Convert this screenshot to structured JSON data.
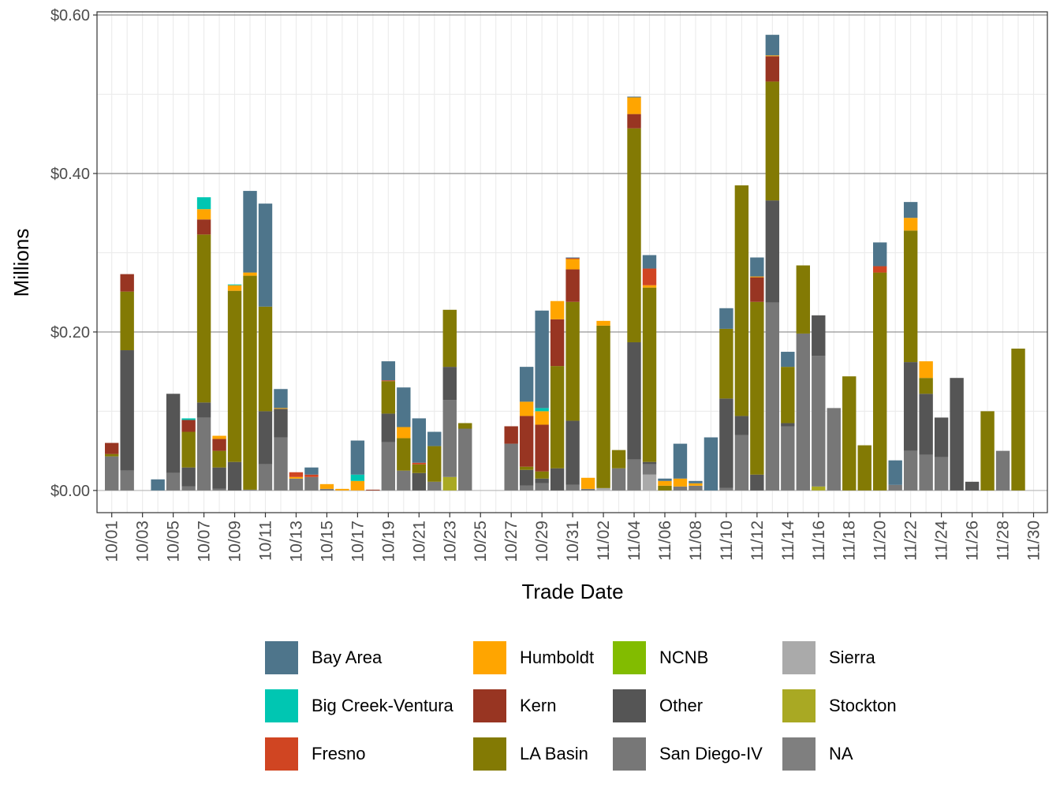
{
  "chart_data": {
    "type": "bar",
    "stacked": true,
    "xlabel": "Trade Date",
    "ylabel": "Millions",
    "ylim": [
      -0.028,
      0.604
    ],
    "yticks": [
      0,
      0.2,
      0.4,
      0.6
    ],
    "ytick_labels": [
      "$0.00",
      "$0.20",
      "$0.40",
      "$0.60"
    ],
    "xtick_labels": [
      "10/01",
      "10/03",
      "10/05",
      "10/07",
      "10/09",
      "10/11",
      "10/13",
      "10/15",
      "10/17",
      "10/19",
      "10/21",
      "10/23",
      "10/25",
      "10/27",
      "10/29",
      "10/31",
      "11/02",
      "11/04",
      "11/06",
      "11/08",
      "11/10",
      "11/12",
      "11/14",
      "11/16",
      "11/18",
      "11/20",
      "11/22",
      "11/24",
      "11/26",
      "11/28",
      "11/30"
    ],
    "grid": true,
    "legend_position": "bottom",
    "series": [
      {
        "name": "Bay Area",
        "color": "#4e758b"
      },
      {
        "name": "Big Creek-Ventura",
        "color": "#00c6b2"
      },
      {
        "name": "Fresno",
        "color": "#d04522"
      },
      {
        "name": "Humboldt",
        "color": "#ffa500"
      },
      {
        "name": "Kern",
        "color": "#983522"
      },
      {
        "name": "LA Basin",
        "color": "#837a04"
      },
      {
        "name": "NCNB",
        "color": "#82bc00"
      },
      {
        "name": "Other",
        "color": "#555555"
      },
      {
        "name": "San Diego-IV",
        "color": "#777777"
      },
      {
        "name": "Sierra",
        "color": "#aaaaaa"
      },
      {
        "name": "Stockton",
        "color": "#a9a923"
      },
      {
        "name": "NA",
        "color": "#7f7f7f"
      }
    ],
    "days": [
      {
        "date": "10/01",
        "values": {
          "San Diego-IV": 0.043,
          "LA Basin": 0.003,
          "Kern": 0.014
        }
      },
      {
        "date": "10/02",
        "values": {
          "San Diego-IV": 0.025,
          "Other": 0.152,
          "LA Basin": 0.074,
          "Kern": 0.022
        }
      },
      {
        "date": "10/03",
        "values": {}
      },
      {
        "date": "10/04",
        "values": {
          "Bay Area": 0.014
        }
      },
      {
        "date": "10/05",
        "values": {
          "San Diego-IV": 0.022,
          "Other": 0.1
        }
      },
      {
        "date": "10/06",
        "values": {
          "San Diego-IV": 0.005,
          "Other": 0.024,
          "LA Basin": 0.045,
          "Kern": 0.015,
          "Big Creek-Ventura": 0.002
        }
      },
      {
        "date": "10/07",
        "values": {
          "San Diego-IV": 0.092,
          "Other": 0.019,
          "LA Basin": 0.212,
          "Kern": 0.019,
          "Humboldt": 0.013,
          "Big Creek-Ventura": 0.015
        }
      },
      {
        "date": "10/08",
        "values": {
          "San Diego-IV": 0.002,
          "Other": 0.027,
          "LA Basin": 0.021,
          "Kern": 0.015,
          "Humboldt": 0.004
        }
      },
      {
        "date": "10/09",
        "values": {
          "Other": 0.036,
          "LA Basin": 0.216,
          "Humboldt": 0.007,
          "Big Creek-Ventura": 0.001
        }
      },
      {
        "date": "10/10",
        "values": {
          "San Diego-IV": 0.001,
          "LA Basin": 0.27,
          "Humboldt": 0.004,
          "Bay Area": 0.103
        }
      },
      {
        "date": "10/11",
        "values": {
          "San Diego-IV": 0.033,
          "Other": 0.067,
          "LA Basin": 0.132,
          "Bay Area": 0.13
        }
      },
      {
        "date": "10/12",
        "values": {
          "San Diego-IV": 0.067,
          "Other": 0.036,
          "Humboldt": 0.001,
          "Bay Area": 0.024
        }
      },
      {
        "date": "10/13",
        "values": {
          "San Diego-IV": 0.015,
          "Humboldt": 0.002,
          "Fresno": 0.006
        }
      },
      {
        "date": "10/14",
        "values": {
          "San Diego-IV": 0.017,
          "Fresno": 0.003,
          "Bay Area": 0.009
        }
      },
      {
        "date": "10/15",
        "values": {
          "San Diego-IV": 0.002,
          "Humboldt": 0.006
        }
      },
      {
        "date": "10/16",
        "values": {
          "Humboldt": 0.002
        }
      },
      {
        "date": "10/17",
        "values": {
          "Humboldt": 0.012,
          "Big Creek-Ventura": 0.008,
          "Bay Area": 0.043
        }
      },
      {
        "date": "10/18",
        "values": {
          "Kern": 0.001
        }
      },
      {
        "date": "10/19",
        "values": {
          "San Diego-IV": 0.061,
          "Other": 0.036,
          "LA Basin": 0.041,
          "Fresno": 0.001,
          "Bay Area": 0.024
        }
      },
      {
        "date": "10/20",
        "values": {
          "San Diego-IV": 0.025,
          "LA Basin": 0.041,
          "Humboldt": 0.014,
          "Bay Area": 0.05
        }
      },
      {
        "date": "10/21",
        "values": {
          "Other": 0.022,
          "LA Basin": 0.011,
          "Fresno": 0.002,
          "Bay Area": 0.056
        }
      },
      {
        "date": "10/22",
        "values": {
          "San Diego-IV": 0.011,
          "LA Basin": 0.045,
          "Bay Area": 0.018
        }
      },
      {
        "date": "10/23",
        "values": {
          "Stockton": 0.017,
          "San Diego-IV": 0.097,
          "Other": 0.042,
          "LA Basin": 0.072
        }
      },
      {
        "date": "10/24",
        "values": {
          "San Diego-IV": 0.078,
          "LA Basin": 0.007
        }
      },
      {
        "date": "10/25",
        "values": {}
      },
      {
        "date": "10/26",
        "values": {}
      },
      {
        "date": "10/27",
        "values": {
          "San Diego-IV": 0.059,
          "Kern": 0.022
        }
      },
      {
        "date": "10/28",
        "values": {
          "San Diego-IV": 0.006,
          "Other": 0.02,
          "LA Basin": 0.004,
          "Kern": 0.064,
          "Humboldt": 0.018,
          "Bay Area": 0.044
        }
      },
      {
        "date": "10/29",
        "values": {
          "San Diego-IV": 0.009,
          "Other": 0.006,
          "LA Basin": 0.009,
          "Kern": 0.059,
          "Humboldt": 0.017,
          "Big Creek-Ventura": 0.004,
          "Bay Area": 0.123
        }
      },
      {
        "date": "10/30",
        "values": {
          "Other": 0.028,
          "LA Basin": 0.129,
          "Kern": 0.059,
          "Humboldt": 0.023
        }
      },
      {
        "date": "10/31",
        "values": {
          "San Diego-IV": 0.007,
          "Other": 0.081,
          "LA Basin": 0.15,
          "Kern": 0.041,
          "Humboldt": 0.013,
          "Fresno": 0.001,
          "Bay Area": 0.001
        }
      },
      {
        "date": "11/01",
        "values": {
          "San Diego-IV": 0.002,
          "Humboldt": 0.014
        }
      },
      {
        "date": "11/02",
        "values": {
          "Sierra": 0.003,
          "LA Basin": 0.205,
          "Humboldt": 0.006
        }
      },
      {
        "date": "11/03",
        "values": {
          "San Diego-IV": 0.028,
          "LA Basin": 0.023
        }
      },
      {
        "date": "11/04",
        "values": {
          "San Diego-IV": 0.039,
          "Other": 0.148,
          "LA Basin": 0.27,
          "Kern": 0.018,
          "Humboldt": 0.021,
          "Bay Area": 0.001
        }
      },
      {
        "date": "11/05",
        "values": {
          "Sierra": 0.02,
          "San Diego-IV": 0.013,
          "Other": 0.003,
          "LA Basin": 0.22,
          "Humboldt": 0.003,
          "Fresno": 0.021,
          "Bay Area": 0.017
        }
      },
      {
        "date": "11/06",
        "values": {
          "LA Basin": 0.006,
          "Humboldt": 0.006,
          "Bay Area": 0.003
        }
      },
      {
        "date": "11/07",
        "values": {
          "San Diego-IV": 0.005,
          "Humboldt": 0.01,
          "Bay Area": 0.044
        }
      },
      {
        "date": "11/08",
        "values": {
          "San Diego-IV": 0.006,
          "Humboldt": 0.003,
          "Bay Area": 0.003
        }
      },
      {
        "date": "11/09",
        "values": {
          "Bay Area": 0.067
        }
      },
      {
        "date": "11/10",
        "values": {
          "San Diego-IV": 0.003,
          "Other": 0.113,
          "LA Basin": 0.088,
          "Bay Area": 0.026
        }
      },
      {
        "date": "11/11",
        "values": {
          "San Diego-IV": 0.07,
          "Other": 0.024,
          "LA Basin": 0.291
        }
      },
      {
        "date": "11/12",
        "values": {
          "Other": 0.02,
          "LA Basin": 0.218,
          "Kern": 0.031,
          "Humboldt": 0.001,
          "Bay Area": 0.024
        }
      },
      {
        "date": "11/13",
        "values": {
          "San Diego-IV": 0.237,
          "Other": 0.129,
          "LA Basin": 0.15,
          "Kern": 0.032,
          "Humboldt": 0.001,
          "Bay Area": 0.026
        }
      },
      {
        "date": "11/14",
        "values": {
          "San Diego-IV": 0.081,
          "Other": 0.004,
          "LA Basin": 0.071,
          "Bay Area": 0.019
        }
      },
      {
        "date": "11/15",
        "values": {
          "San Diego-IV": 0.198,
          "LA Basin": 0.086
        }
      },
      {
        "date": "11/16",
        "values": {
          "Stockton": 0.005,
          "San Diego-IV": 0.165,
          "Other": 0.051
        }
      },
      {
        "date": "11/17",
        "values": {
          "San Diego-IV": 0.104
        }
      },
      {
        "date": "11/18",
        "values": {
          "LA Basin": 0.144
        }
      },
      {
        "date": "11/19",
        "values": {
          "LA Basin": 0.057
        }
      },
      {
        "date": "11/20",
        "values": {
          "LA Basin": 0.275,
          "Fresno": 0.008,
          "Bay Area": 0.03
        }
      },
      {
        "date": "11/21",
        "values": {
          "San Diego-IV": 0.007,
          "Bay Area": 0.031
        }
      },
      {
        "date": "11/22",
        "values": {
          "San Diego-IV": 0.05,
          "Other": 0.112,
          "LA Basin": 0.166,
          "Humboldt": 0.016,
          "Bay Area": 0.02
        }
      },
      {
        "date": "11/23",
        "values": {
          "San Diego-IV": 0.045,
          "Other": 0.077,
          "LA Basin": 0.02,
          "Humboldt": 0.021
        }
      },
      {
        "date": "11/24",
        "values": {
          "San Diego-IV": 0.042,
          "Other": 0.05
        }
      },
      {
        "date": "11/25",
        "values": {
          "Other": 0.142
        }
      },
      {
        "date": "11/26",
        "values": {
          "Other": 0.011
        }
      },
      {
        "date": "11/27",
        "values": {
          "LA Basin": 0.1
        }
      },
      {
        "date": "11/28",
        "values": {
          "San Diego-IV": 0.05
        }
      },
      {
        "date": "11/29",
        "values": {
          "LA Basin": 0.179
        }
      },
      {
        "date": "11/30",
        "values": {}
      }
    ]
  }
}
